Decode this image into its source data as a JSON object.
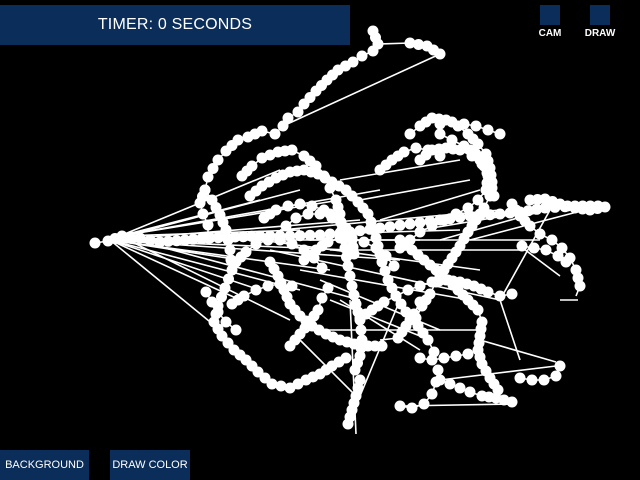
{
  "timer": {
    "label": "TIMER: 0 SECONDS"
  },
  "buttons": {
    "cam": "CAM",
    "draw": "DRAW",
    "background": "BACKGROUND",
    "draw_color": "DRAW COLOR"
  },
  "colors": {
    "background": "#000000",
    "panel": "#0b2d5a",
    "stroke": "#ffffff"
  }
}
